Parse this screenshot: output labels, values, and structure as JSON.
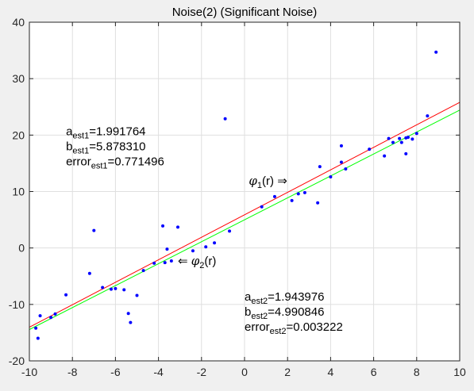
{
  "chart_data": {
    "type": "scatter",
    "title": "Noise(2) (Significant Noise)",
    "xlabel": "",
    "ylabel": "",
    "xlim": [
      -10,
      10
    ],
    "ylim": [
      -20,
      40
    ],
    "x_ticks": [
      "-10",
      "-8",
      "-6",
      "-4",
      "-2",
      "0",
      "2",
      "4",
      "6",
      "8",
      "10"
    ],
    "y_ticks": [
      "-20",
      "-10",
      "0",
      "10",
      "20",
      "30",
      "40"
    ],
    "grid": true,
    "points": {
      "color": "#0000ff",
      "x": [
        -9.7,
        -9.6,
        -9.5,
        -9.0,
        -8.8,
        -8.3,
        -7.2,
        -7.0,
        -6.6,
        -6.2,
        -6.0,
        -5.6,
        -5.4,
        -5.3,
        -5.0,
        -4.7,
        -4.2,
        -3.8,
        -3.7,
        -3.6,
        -3.4,
        -3.1,
        -2.4,
        -1.8,
        -1.4,
        -0.9,
        -0.7,
        0.8,
        1.4,
        2.2,
        2.5,
        2.8,
        3.4,
        3.5,
        4.0,
        4.5,
        4.5,
        4.7,
        5.8,
        6.5,
        6.7,
        6.9,
        7.2,
        7.3,
        7.5,
        7.5,
        7.6,
        7.8,
        8.0,
        8.5,
        8.9
      ],
      "y": [
        -14.2,
        -16.0,
        -12.0,
        -12.3,
        -11.7,
        -8.3,
        -4.5,
        3.1,
        -7.0,
        -7.3,
        -7.2,
        -7.4,
        -11.6,
        -13.2,
        -8.4,
        -4.0,
        -2.7,
        3.9,
        -2.6,
        -0.2,
        -2.3,
        3.7,
        -0.5,
        0.2,
        0.9,
        22.9,
        3.0,
        7.3,
        9.1,
        8.4,
        9.6,
        9.8,
        8.0,
        14.4,
        12.6,
        18.1,
        15.2,
        14.0,
        17.5,
        16.3,
        19.4,
        18.7,
        19.4,
        18.7,
        16.7,
        19.5,
        19.6,
        19.3,
        20.3,
        23.4,
        34.7
      ]
    },
    "lines": [
      {
        "color": "#ff0000",
        "slope": 1.991764,
        "intercept": 5.87831,
        "label_symbol": "φ",
        "label_sub": "1",
        "label_rest": "(r) ⇒",
        "label_at": [
          0.2,
          11.2
        ]
      },
      {
        "color": "#00ff00",
        "slope": 1.943976,
        "intercept": 4.990846,
        "label_symbol": "φ",
        "label_sub": "2",
        "label_rest": "(r)",
        "label_prefix": "⇐ ",
        "label_at": [
          -3.1,
          -3.0
        ]
      }
    ],
    "annotations": [
      {
        "at": [
          -8.3,
          20.0
        ],
        "lines": [
          {
            "main": "a",
            "sub": "est1",
            "rest": "=1.991764"
          },
          {
            "main": "b",
            "sub": "est1",
            "rest": "=5.878310"
          },
          {
            "main": "error",
            "sub": "est1",
            "rest": "=0.771496"
          }
        ]
      },
      {
        "at": [
          0.0,
          -9.3
        ],
        "lines": [
          {
            "main": "a",
            "sub": "est2",
            "rest": "=1.943976"
          },
          {
            "main": "b",
            "sub": "est2",
            "rest": "=4.990846"
          },
          {
            "main": "error",
            "sub": "est2",
            "rest": "=0.003222"
          }
        ]
      }
    ]
  }
}
